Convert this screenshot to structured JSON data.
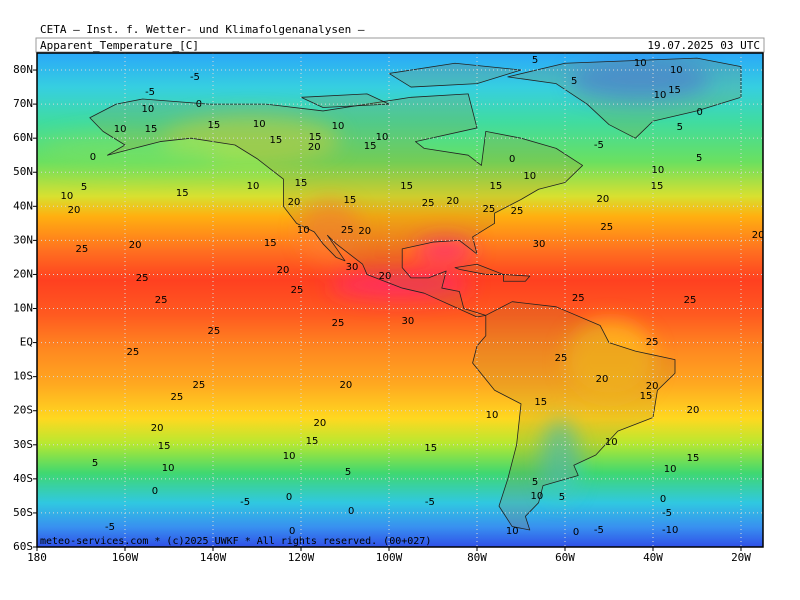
{
  "header": {
    "title": "CETA — Inst. f. Wetter- und Klimafolgenanalysen —",
    "field": "Apparent_Temperature_[C]",
    "valid_time": "19.07.2025 03 UTC"
  },
  "map": {
    "type": "map",
    "lon_range": [
      -180,
      -15
    ],
    "lat_range": [
      -60,
      85
    ],
    "grid": true,
    "lon_ticks": [
      {
        "value": -180,
        "label": "180"
      },
      {
        "value": -160,
        "label": "160W"
      },
      {
        "value": -140,
        "label": "140W"
      },
      {
        "value": -120,
        "label": "120W"
      },
      {
        "value": -100,
        "label": "100W"
      },
      {
        "value": -80,
        "label": "80W"
      },
      {
        "value": -60,
        "label": "60W"
      },
      {
        "value": -40,
        "label": "40W"
      },
      {
        "value": -20,
        "label": "20W"
      }
    ],
    "lat_ticks": [
      {
        "value": 80,
        "label": "80N"
      },
      {
        "value": 70,
        "label": "70N"
      },
      {
        "value": 60,
        "label": "60N"
      },
      {
        "value": 50,
        "label": "50N"
      },
      {
        "value": 40,
        "label": "40N"
      },
      {
        "value": 30,
        "label": "30N"
      },
      {
        "value": 20,
        "label": "20N"
      },
      {
        "value": 10,
        "label": "10N"
      },
      {
        "value": 0,
        "label": "EQ"
      },
      {
        "value": -10,
        "label": "10S"
      },
      {
        "value": -20,
        "label": "20S"
      },
      {
        "value": -30,
        "label": "30S"
      },
      {
        "value": -40,
        "label": "40S"
      },
      {
        "value": -50,
        "label": "50S"
      },
      {
        "value": -60,
        "label": "60S"
      }
    ],
    "contour_labels": [
      {
        "lon": -144.1,
        "lat": 78,
        "value": -5
      },
      {
        "lon": -154.3,
        "lat": 73.6,
        "value": -5
      },
      {
        "lon": -154.8,
        "lat": 68.6,
        "value": 10
      },
      {
        "lon": -143.2,
        "lat": 70,
        "value": 0
      },
      {
        "lon": -161.1,
        "lat": 62.7,
        "value": 10
      },
      {
        "lon": -154.1,
        "lat": 62.7,
        "value": 15
      },
      {
        "lon": -139.8,
        "lat": 63.9,
        "value": 15
      },
      {
        "lon": -129.5,
        "lat": 64.2,
        "value": 10
      },
      {
        "lon": -111.6,
        "lat": 63.6,
        "value": 10
      },
      {
        "lon": -116.8,
        "lat": 60.3,
        "value": 15
      },
      {
        "lon": -117,
        "lat": 57.4,
        "value": 20
      },
      {
        "lon": -125.7,
        "lat": 59.5,
        "value": 15
      },
      {
        "lon": -101.6,
        "lat": 60.3,
        "value": 10
      },
      {
        "lon": -104.3,
        "lat": 57.7,
        "value": 15
      },
      {
        "lon": -167.3,
        "lat": 54.5,
        "value": 0
      },
      {
        "lon": -130.9,
        "lat": 46,
        "value": 10
      },
      {
        "lon": -147,
        "lat": 43.9,
        "value": 15
      },
      {
        "lon": -169.3,
        "lat": 45.7,
        "value": 5
      },
      {
        "lon": -173.2,
        "lat": 43,
        "value": 10
      },
      {
        "lon": -171.6,
        "lat": 38.9,
        "value": 20
      },
      {
        "lon": -120,
        "lat": 46.8,
        "value": 15
      },
      {
        "lon": -121.6,
        "lat": 41.3,
        "value": 20
      },
      {
        "lon": -108.9,
        "lat": 41.9,
        "value": 15
      },
      {
        "lon": -96,
        "lat": 46,
        "value": 15
      },
      {
        "lon": -91.1,
        "lat": 41,
        "value": 25
      },
      {
        "lon": -85.5,
        "lat": 41.6,
        "value": 20
      },
      {
        "lon": -70.9,
        "lat": 38.6,
        "value": 25
      },
      {
        "lon": -119.5,
        "lat": 33,
        "value": 10
      },
      {
        "lon": -109.5,
        "lat": 33,
        "value": 25
      },
      {
        "lon": -105.5,
        "lat": 32.8,
        "value": 20
      },
      {
        "lon": -127,
        "lat": 29.2,
        "value": 15
      },
      {
        "lon": -157.7,
        "lat": 28.6,
        "value": 20
      },
      {
        "lon": -169.8,
        "lat": 27.5,
        "value": 25
      },
      {
        "lon": -65.9,
        "lat": 28.9,
        "value": 30
      },
      {
        "lon": -50.5,
        "lat": 33.9,
        "value": 25
      },
      {
        "lon": -51.4,
        "lat": 42.1,
        "value": 20
      },
      {
        "lon": -16.1,
        "lat": 31.6,
        "value": 20
      },
      {
        "lon": -38.9,
        "lat": 50.7,
        "value": 10
      },
      {
        "lon": -39.1,
        "lat": 46,
        "value": 15
      },
      {
        "lon": -29.5,
        "lat": 54.2,
        "value": 5
      },
      {
        "lon": -33.9,
        "lat": 63.3,
        "value": 5
      },
      {
        "lon": -124.1,
        "lat": 21.3,
        "value": 20
      },
      {
        "lon": -156.1,
        "lat": 19,
        "value": 25
      },
      {
        "lon": -108.4,
        "lat": 22.2,
        "value": 30
      },
      {
        "lon": -100.9,
        "lat": 19.5,
        "value": 20
      },
      {
        "lon": -120.9,
        "lat": 15.4,
        "value": 25
      },
      {
        "lon": -151.8,
        "lat": 12.5,
        "value": 25
      },
      {
        "lon": -95.7,
        "lat": 6.3,
        "value": 30
      },
      {
        "lon": -111.6,
        "lat": 5.8,
        "value": 25
      },
      {
        "lon": -139.8,
        "lat": 3.4,
        "value": 25
      },
      {
        "lon": -57,
        "lat": 13.1,
        "value": 25
      },
      {
        "lon": -31.6,
        "lat": 12.5,
        "value": 25
      },
      {
        "lon": -40.2,
        "lat": 0.2,
        "value": 25
      },
      {
        "lon": -158.2,
        "lat": -2.8,
        "value": 25
      },
      {
        "lon": -60.9,
        "lat": -4.5,
        "value": 25
      },
      {
        "lon": -51.6,
        "lat": -10.7,
        "value": 20
      },
      {
        "lon": -40.2,
        "lat": -12.7,
        "value": 20
      },
      {
        "lon": -41.6,
        "lat": -15.7,
        "value": 15
      },
      {
        "lon": -143.2,
        "lat": -12.4,
        "value": 25
      },
      {
        "lon": -148.2,
        "lat": -16,
        "value": 25
      },
      {
        "lon": -109.8,
        "lat": -12.4,
        "value": 20
      },
      {
        "lon": -115.7,
        "lat": -23.6,
        "value": 20
      },
      {
        "lon": -152.7,
        "lat": -25.1,
        "value": 20
      },
      {
        "lon": -151.1,
        "lat": -30.3,
        "value": 15
      },
      {
        "lon": -117.5,
        "lat": -28.9,
        "value": 15
      },
      {
        "lon": -90.5,
        "lat": -30.9,
        "value": 15
      },
      {
        "lon": -76.6,
        "lat": -21.3,
        "value": 10
      },
      {
        "lon": -65.5,
        "lat": -17.4,
        "value": 15
      },
      {
        "lon": -30.9,
        "lat": -19.8,
        "value": 20
      },
      {
        "lon": -49.5,
        "lat": -29.2,
        "value": 10
      },
      {
        "lon": -30.9,
        "lat": -33.9,
        "value": 15
      },
      {
        "lon": -36.1,
        "lat": -37.1,
        "value": 10
      },
      {
        "lon": -122.7,
        "lat": -33.3,
        "value": 10
      },
      {
        "lon": -150.2,
        "lat": -36.8,
        "value": 10
      },
      {
        "lon": -166.8,
        "lat": -35.3,
        "value": 5
      },
      {
        "lon": -109.3,
        "lat": -38,
        "value": 5
      },
      {
        "lon": -153.2,
        "lat": -43.6,
        "value": 0
      },
      {
        "lon": -132.7,
        "lat": -46.8,
        "value": -5
      },
      {
        "lon": -122.7,
        "lat": -45.3,
        "value": 0
      },
      {
        "lon": -108.6,
        "lat": -49.4,
        "value": 0
      },
      {
        "lon": -90.7,
        "lat": -46.8,
        "value": -5
      },
      {
        "lon": -66.8,
        "lat": -40.9,
        "value": 5
      },
      {
        "lon": -66.4,
        "lat": -45,
        "value": 10
      },
      {
        "lon": -60.7,
        "lat": -45.3,
        "value": 5
      },
      {
        "lon": -37.7,
        "lat": -45.9,
        "value": 0
      },
      {
        "lon": -36.8,
        "lat": -50,
        "value": -5
      },
      {
        "lon": -52.3,
        "lat": -55,
        "value": -5
      },
      {
        "lon": -57.5,
        "lat": -55.6,
        "value": 0
      },
      {
        "lon": -163.4,
        "lat": -54.1,
        "value": -5
      },
      {
        "lon": -122,
        "lat": -55.3,
        "value": 0
      },
      {
        "lon": -72,
        "lat": -55.3,
        "value": 10
      },
      {
        "lon": -36.1,
        "lat": -55,
        "value": -10
      },
      {
        "lon": -66.8,
        "lat": 83,
        "value": 5
      },
      {
        "lon": -42.9,
        "lat": 82.1,
        "value": 10
      },
      {
        "lon": -34.7,
        "lat": 80,
        "value": 10
      },
      {
        "lon": -38.4,
        "lat": 72.7,
        "value": 10
      },
      {
        "lon": -57.9,
        "lat": 76.8,
        "value": 5
      },
      {
        "lon": -52.3,
        "lat": 58,
        "value": -5
      },
      {
        "lon": -72,
        "lat": 53.9,
        "value": 0
      },
      {
        "lon": -68,
        "lat": 48.9,
        "value": 10
      },
      {
        "lon": -77.3,
        "lat": 39.2,
        "value": 25
      },
      {
        "lon": -75.7,
        "lat": 46,
        "value": 15
      },
      {
        "lon": -35.1,
        "lat": 74.1,
        "value": 15
      },
      {
        "lon": -29.4,
        "lat": 67.7,
        "value": 0
      }
    ]
  },
  "footer": "meteo-services.com * (c)2025 UWKF * All rights reserved. (00+027)"
}
